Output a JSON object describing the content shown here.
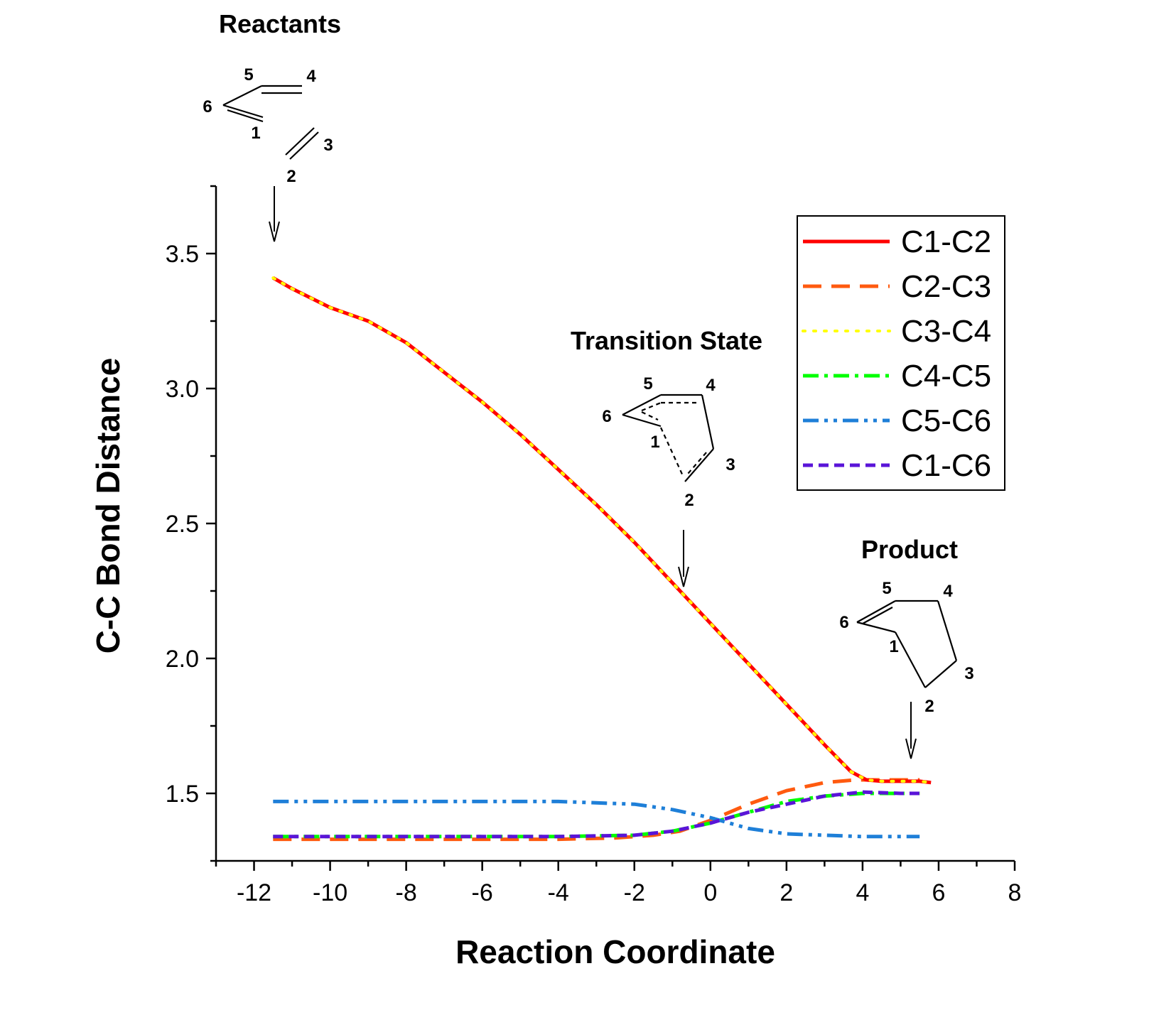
{
  "chart_data": {
    "type": "line",
    "xlabel": "Reaction Coordinate",
    "ylabel": "C-C Bond Distance",
    "xlim": [
      -13,
      8
    ],
    "ylim": [
      1.25,
      3.75
    ],
    "xticks": [
      -12,
      -10,
      -8,
      -6,
      -4,
      -2,
      0,
      2,
      4,
      6,
      8
    ],
    "yticks": [
      1.5,
      2.0,
      2.5,
      3.0,
      3.5
    ],
    "xtick_labels": [
      "-12",
      "-10",
      "-8",
      "-6",
      "-4",
      "-2",
      "0",
      "2",
      "4",
      "6",
      "8"
    ],
    "ytick_labels": [
      "1.5",
      "2.0",
      "2.5",
      "3.0",
      "3.5"
    ],
    "legend_position": "top-right",
    "series": [
      {
        "name": "C1-C2",
        "color": "#ff0000",
        "style": "solid",
        "x": [
          -11.5,
          -11,
          -10,
          -9,
          -8,
          -7,
          -6,
          -5,
          -4,
          -3,
          -2,
          -1,
          0,
          1,
          2,
          3,
          3.7,
          4.1,
          4.5,
          5,
          5.5,
          5.8
        ],
        "y": [
          3.41,
          3.37,
          3.3,
          3.25,
          3.17,
          3.06,
          2.95,
          2.83,
          2.7,
          2.57,
          2.43,
          2.28,
          2.13,
          1.98,
          1.83,
          1.68,
          1.58,
          1.55,
          1.545,
          1.545,
          1.545,
          1.54
        ]
      },
      {
        "name": "C2-C3",
        "color": "#ff5a0f",
        "style": "dash",
        "x": [
          -11.5,
          -10,
          -8,
          -6,
          -4,
          -2.5,
          -1.5,
          -0.8,
          0,
          1,
          2,
          3,
          3.8,
          4.5,
          5.5
        ],
        "y": [
          1.33,
          1.33,
          1.33,
          1.33,
          1.33,
          1.335,
          1.345,
          1.36,
          1.4,
          1.46,
          1.51,
          1.54,
          1.55,
          1.55,
          1.55
        ]
      },
      {
        "name": "C3-C4",
        "color": "#ffff00",
        "style": "dot",
        "x": [
          -11.5,
          -11,
          -10,
          -9,
          -8,
          -7,
          -6,
          -5,
          -4,
          -3,
          -2,
          -1,
          0,
          1,
          2,
          3,
          3.7,
          4.1,
          4.5,
          5,
          5.5,
          5.8
        ],
        "y": [
          3.41,
          3.37,
          3.3,
          3.25,
          3.17,
          3.06,
          2.95,
          2.83,
          2.7,
          2.57,
          2.43,
          2.28,
          2.13,
          1.98,
          1.83,
          1.68,
          1.58,
          1.55,
          1.545,
          1.545,
          1.545,
          1.54
        ]
      },
      {
        "name": "C4-C5",
        "color": "#00ff00",
        "style": "dashdot",
        "x": [
          -11.5,
          -10,
          -8,
          -6,
          -4,
          -2,
          -1,
          0,
          1,
          2,
          3,
          4,
          5,
          5.5
        ],
        "y": [
          1.34,
          1.34,
          1.34,
          1.34,
          1.34,
          1.345,
          1.36,
          1.39,
          1.43,
          1.47,
          1.49,
          1.5,
          1.5,
          1.5
        ]
      },
      {
        "name": "C5-C6",
        "color": "#1e7fd8",
        "style": "dashdotdot",
        "x": [
          -11.5,
          -10,
          -8,
          -6,
          -4,
          -2,
          -1,
          0,
          1,
          2,
          3,
          4,
          5,
          5.5
        ],
        "y": [
          1.47,
          1.47,
          1.47,
          1.47,
          1.47,
          1.46,
          1.44,
          1.41,
          1.37,
          1.35,
          1.345,
          1.34,
          1.34,
          1.34
        ]
      },
      {
        "name": "C1-C6",
        "color": "#5a14d8",
        "style": "shortdash",
        "x": [
          -11.5,
          -10,
          -8,
          -6,
          -4,
          -2,
          -1,
          0,
          1,
          2,
          3,
          4,
          5,
          5.5
        ],
        "y": [
          1.34,
          1.34,
          1.34,
          1.34,
          1.34,
          1.345,
          1.36,
          1.39,
          1.43,
          1.46,
          1.49,
          1.505,
          1.5,
          1.5
        ]
      }
    ],
    "annotations": [
      {
        "text": "Reactants",
        "labels": [
          "5",
          "4",
          "6",
          "1",
          "3",
          "2"
        ]
      },
      {
        "text": "Transition State",
        "labels": [
          "5",
          "4",
          "6",
          "1",
          "3",
          "2"
        ]
      },
      {
        "text": "Product",
        "labels": [
          "5",
          "4",
          "6",
          "1",
          "3",
          "2"
        ]
      }
    ]
  }
}
